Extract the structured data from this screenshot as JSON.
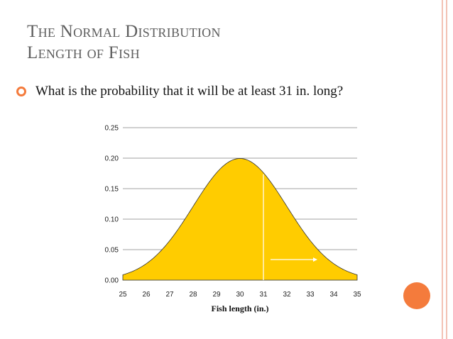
{
  "slide": {
    "title_line1": "The Normal Distribution",
    "title_line2": "Length of Fish",
    "bullet": "What is the probability that it will be at least 31 in. long?"
  },
  "colors": {
    "accent": "#f47b3c",
    "title": "#5e5e5e",
    "fill": "#ffcc00",
    "border": "#f3c2b4"
  },
  "chart_data": {
    "type": "area",
    "distribution": "normal",
    "mean": 30,
    "sd": 2,
    "x": [
      25,
      25.5,
      26,
      26.5,
      27,
      27.5,
      28,
      28.5,
      29,
      29.5,
      30,
      30.5,
      31,
      31.5,
      32,
      32.5,
      33,
      33.5,
      34,
      34.5,
      35
    ],
    "y": [
      0.009,
      0.0227,
      0.027,
      0.0397,
      0.0648,
      0.0909,
      0.121,
      0.1506,
      0.176,
      0.1933,
      0.1995,
      0.1933,
      0.176,
      0.1506,
      0.121,
      0.0909,
      0.0648,
      0.0397,
      0.027,
      0.0227,
      0.009
    ],
    "xticks": [
      "25",
      "26",
      "27",
      "28",
      "29",
      "30",
      "31",
      "32",
      "33",
      "34",
      "35"
    ],
    "yticks": [
      "0.00",
      "0.05",
      "0.10",
      "0.15",
      "0.20",
      "0.25"
    ],
    "xlim": [
      25,
      35
    ],
    "ylim": [
      0,
      0.25
    ],
    "xlabel": "Fish length (in.)",
    "ylabel": "",
    "title": "",
    "grid": true,
    "marker_x": 31,
    "annotation": "arrow pointing right from x = 31"
  }
}
